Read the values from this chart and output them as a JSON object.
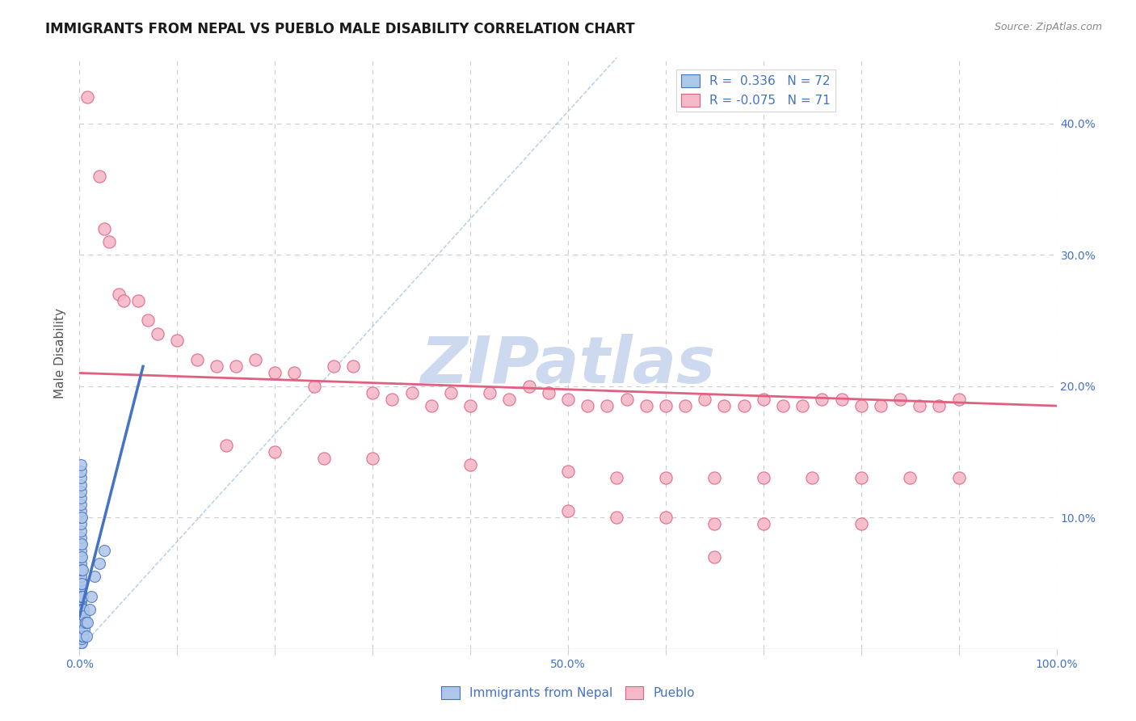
{
  "title": "IMMIGRANTS FROM NEPAL VS PUEBLO MALE DISABILITY CORRELATION CHART",
  "source": "Source: ZipAtlas.com",
  "ylabel": "Male Disability",
  "watermark": "ZIPatlas",
  "legend_blue_R": "0.336",
  "legend_blue_N": "72",
  "legend_pink_R": "-0.075",
  "legend_pink_N": "71",
  "xlim": [
    0.0,
    1.0
  ],
  "ylim": [
    0.0,
    0.45
  ],
  "background_color": "#ffffff",
  "grid_color": "#cccccc",
  "blue_fill": "#aec6e8",
  "pink_fill": "#f4b8c8",
  "blue_edge": "#4472c4",
  "pink_edge": "#e06080",
  "blue_line": "#4472c4",
  "pink_line": "#e06080",
  "dash_color": "#7fadd4",
  "title_color": "#1a1a1a",
  "axis_tick_color": "#4472c4",
  "ylabel_color": "#555555",
  "watermark_color": "#ccd9ee",
  "blue_scatter": [
    [
      0.001,
      0.005
    ],
    [
      0.001,
      0.005
    ],
    [
      0.001,
      0.005
    ],
    [
      0.001,
      0.005
    ],
    [
      0.001,
      0.005
    ],
    [
      0.001,
      0.008
    ],
    [
      0.001,
      0.01
    ],
    [
      0.001,
      0.012
    ],
    [
      0.001,
      0.015
    ],
    [
      0.001,
      0.018
    ],
    [
      0.001,
      0.02
    ],
    [
      0.001,
      0.022
    ],
    [
      0.001,
      0.025
    ],
    [
      0.001,
      0.028
    ],
    [
      0.001,
      0.03
    ],
    [
      0.001,
      0.032
    ],
    [
      0.001,
      0.035
    ],
    [
      0.001,
      0.038
    ],
    [
      0.001,
      0.04
    ],
    [
      0.001,
      0.042
    ],
    [
      0.001,
      0.045
    ],
    [
      0.001,
      0.048
    ],
    [
      0.001,
      0.05
    ],
    [
      0.001,
      0.052
    ],
    [
      0.001,
      0.055
    ],
    [
      0.001,
      0.06
    ],
    [
      0.001,
      0.065
    ],
    [
      0.001,
      0.07
    ],
    [
      0.001,
      0.075
    ],
    [
      0.001,
      0.08
    ],
    [
      0.001,
      0.085
    ],
    [
      0.001,
      0.09
    ],
    [
      0.001,
      0.095
    ],
    [
      0.001,
      0.1
    ],
    [
      0.001,
      0.105
    ],
    [
      0.001,
      0.11
    ],
    [
      0.001,
      0.115
    ],
    [
      0.001,
      0.12
    ],
    [
      0.001,
      0.125
    ],
    [
      0.001,
      0.13
    ],
    [
      0.001,
      0.135
    ],
    [
      0.001,
      0.14
    ],
    [
      0.002,
      0.005
    ],
    [
      0.002,
      0.008
    ],
    [
      0.002,
      0.012
    ],
    [
      0.002,
      0.015
    ],
    [
      0.002,
      0.02
    ],
    [
      0.002,
      0.025
    ],
    [
      0.002,
      0.03
    ],
    [
      0.002,
      0.04
    ],
    [
      0.002,
      0.05
    ],
    [
      0.002,
      0.06
    ],
    [
      0.002,
      0.07
    ],
    [
      0.002,
      0.08
    ],
    [
      0.002,
      0.1
    ],
    [
      0.003,
      0.01
    ],
    [
      0.003,
      0.02
    ],
    [
      0.003,
      0.03
    ],
    [
      0.003,
      0.04
    ],
    [
      0.003,
      0.06
    ],
    [
      0.004,
      0.01
    ],
    [
      0.004,
      0.03
    ],
    [
      0.005,
      0.015
    ],
    [
      0.005,
      0.025
    ],
    [
      0.006,
      0.02
    ],
    [
      0.007,
      0.01
    ],
    [
      0.008,
      0.02
    ],
    [
      0.01,
      0.03
    ],
    [
      0.012,
      0.04
    ],
    [
      0.015,
      0.055
    ],
    [
      0.02,
      0.065
    ],
    [
      0.025,
      0.075
    ]
  ],
  "pink_scatter": [
    [
      0.008,
      0.42
    ],
    [
      0.02,
      0.36
    ],
    [
      0.025,
      0.32
    ],
    [
      0.03,
      0.31
    ],
    [
      0.04,
      0.27
    ],
    [
      0.045,
      0.265
    ],
    [
      0.06,
      0.265
    ],
    [
      0.07,
      0.25
    ],
    [
      0.08,
      0.24
    ],
    [
      0.1,
      0.235
    ],
    [
      0.12,
      0.22
    ],
    [
      0.14,
      0.215
    ],
    [
      0.16,
      0.215
    ],
    [
      0.18,
      0.22
    ],
    [
      0.2,
      0.21
    ],
    [
      0.22,
      0.21
    ],
    [
      0.24,
      0.2
    ],
    [
      0.26,
      0.215
    ],
    [
      0.28,
      0.215
    ],
    [
      0.3,
      0.195
    ],
    [
      0.32,
      0.19
    ],
    [
      0.34,
      0.195
    ],
    [
      0.36,
      0.185
    ],
    [
      0.38,
      0.195
    ],
    [
      0.4,
      0.185
    ],
    [
      0.42,
      0.195
    ],
    [
      0.44,
      0.19
    ],
    [
      0.46,
      0.2
    ],
    [
      0.48,
      0.195
    ],
    [
      0.5,
      0.19
    ],
    [
      0.52,
      0.185
    ],
    [
      0.54,
      0.185
    ],
    [
      0.56,
      0.19
    ],
    [
      0.58,
      0.185
    ],
    [
      0.6,
      0.185
    ],
    [
      0.62,
      0.185
    ],
    [
      0.64,
      0.19
    ],
    [
      0.66,
      0.185
    ],
    [
      0.68,
      0.185
    ],
    [
      0.7,
      0.19
    ],
    [
      0.72,
      0.185
    ],
    [
      0.74,
      0.185
    ],
    [
      0.76,
      0.19
    ],
    [
      0.78,
      0.19
    ],
    [
      0.8,
      0.185
    ],
    [
      0.82,
      0.185
    ],
    [
      0.84,
      0.19
    ],
    [
      0.86,
      0.185
    ],
    [
      0.88,
      0.185
    ],
    [
      0.9,
      0.19
    ],
    [
      0.15,
      0.155
    ],
    [
      0.2,
      0.15
    ],
    [
      0.25,
      0.145
    ],
    [
      0.3,
      0.145
    ],
    [
      0.4,
      0.14
    ],
    [
      0.5,
      0.135
    ],
    [
      0.55,
      0.13
    ],
    [
      0.6,
      0.13
    ],
    [
      0.65,
      0.13
    ],
    [
      0.7,
      0.13
    ],
    [
      0.75,
      0.13
    ],
    [
      0.8,
      0.13
    ],
    [
      0.85,
      0.13
    ],
    [
      0.9,
      0.13
    ],
    [
      0.5,
      0.105
    ],
    [
      0.55,
      0.1
    ],
    [
      0.6,
      0.1
    ],
    [
      0.65,
      0.095
    ],
    [
      0.7,
      0.095
    ],
    [
      0.8,
      0.095
    ],
    [
      0.65,
      0.07
    ]
  ],
  "blue_line_x": [
    0.0,
    0.065
  ],
  "blue_line_y": [
    0.025,
    0.215
  ],
  "pink_line_x": [
    0.0,
    1.0
  ],
  "pink_line_y": [
    0.21,
    0.185
  ],
  "dash_line_x": [
    0.0,
    0.55
  ],
  "dash_line_y": [
    0.0,
    0.45
  ]
}
